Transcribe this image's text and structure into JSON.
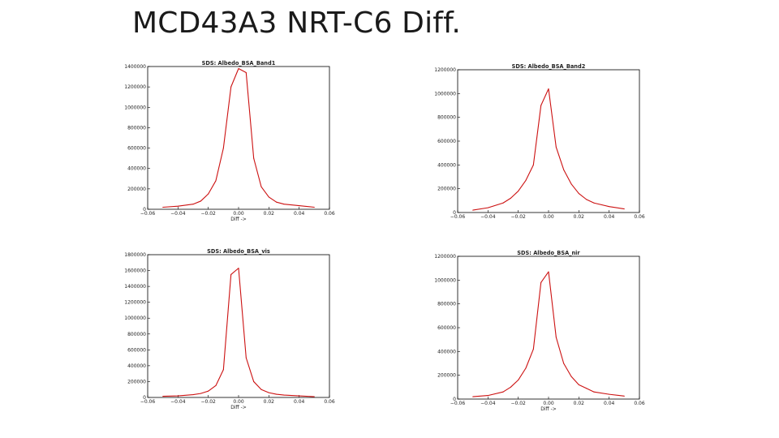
{
  "slide": {
    "title": "MCD43A3 NRT-C6 Diff."
  },
  "chart_data": [
    {
      "type": "line",
      "title": "SDS: Albedo_BSA_Band1",
      "xlabel": "Diff ->",
      "ylabel": "",
      "xlim": [
        -0.06,
        0.06
      ],
      "ylim": [
        0,
        1400000
      ],
      "x_ticks": [
        "−0.06",
        "−0.04",
        "−0.02",
        "0.00",
        "0.02",
        "0.04",
        "0.06"
      ],
      "y_ticks": [
        "0",
        "200000",
        "400000",
        "600000",
        "800000",
        "1000000",
        "1200000",
        "1400000"
      ],
      "series_color": "#cc1111",
      "series": [
        {
          "x": [
            -0.05,
            -0.04,
            -0.03,
            -0.025,
            -0.02,
            -0.015,
            -0.01,
            -0.005,
            0.0,
            0.005,
            0.01,
            0.015,
            0.02,
            0.025,
            0.03,
            0.04,
            0.05
          ],
          "y": [
            20000,
            30000,
            50000,
            80000,
            150000,
            280000,
            600000,
            1200000,
            1380000,
            1340000,
            500000,
            220000,
            120000,
            70000,
            50000,
            35000,
            20000
          ]
        }
      ]
    },
    {
      "type": "line",
      "title": "SDS: Albedo_BSA_Band2",
      "xlabel": "",
      "ylabel": "",
      "xlim": [
        -0.06,
        0.06
      ],
      "ylim": [
        0,
        1200000
      ],
      "x_ticks": [
        "−0.06",
        "−0.04",
        "−0.02",
        "0.00",
        "0.02",
        "0.04",
        "0.06"
      ],
      "y_ticks": [
        "0",
        "200000",
        "400000",
        "600000",
        "800000",
        "1000000",
        "1200000"
      ],
      "series_color": "#cc1111",
      "series": [
        {
          "x": [
            -0.05,
            -0.04,
            -0.03,
            -0.025,
            -0.02,
            -0.015,
            -0.01,
            -0.005,
            0.0,
            0.005,
            0.01,
            0.015,
            0.02,
            0.025,
            0.03,
            0.04,
            0.05
          ],
          "y": [
            20000,
            40000,
            80000,
            120000,
            180000,
            270000,
            400000,
            900000,
            1040000,
            550000,
            360000,
            240000,
            160000,
            110000,
            80000,
            50000,
            30000
          ]
        }
      ]
    },
    {
      "type": "line",
      "title": "SDS: Albedo_BSA_vis",
      "xlabel": "Diff ->",
      "ylabel": "",
      "xlim": [
        -0.06,
        0.06
      ],
      "ylim": [
        0,
        1800000
      ],
      "x_ticks": [
        "−0.06",
        "−0.04",
        "−0.02",
        "0.00",
        "0.02",
        "0.04",
        "0.06"
      ],
      "y_ticks": [
        "0",
        "200000",
        "400000",
        "600000",
        "800000",
        "1000000",
        "1200000",
        "1400000",
        "1600000",
        "1800000"
      ],
      "series_color": "#cc1111",
      "series": [
        {
          "x": [
            -0.05,
            -0.04,
            -0.03,
            -0.025,
            -0.02,
            -0.015,
            -0.01,
            -0.005,
            0.0,
            0.005,
            0.01,
            0.015,
            0.02,
            0.025,
            0.03,
            0.04,
            0.05
          ],
          "y": [
            15000,
            20000,
            35000,
            50000,
            80000,
            150000,
            350000,
            1550000,
            1630000,
            500000,
            200000,
            100000,
            60000,
            40000,
            30000,
            20000,
            10000
          ]
        }
      ]
    },
    {
      "type": "line",
      "title": "SDS: Albedo_BSA_nir",
      "xlabel": "Diff ->",
      "ylabel": "",
      "xlim": [
        -0.06,
        0.06
      ],
      "ylim": [
        0,
        1200000
      ],
      "x_ticks": [
        "−0.06",
        "−0.04",
        "−0.02",
        "0.00",
        "0.02",
        "0.04",
        "0.06"
      ],
      "y_ticks": [
        "0",
        "200000",
        "400000",
        "600000",
        "800000",
        "1000000",
        "1200000"
      ],
      "series_color": "#cc1111",
      "series": [
        {
          "x": [
            -0.05,
            -0.04,
            -0.03,
            -0.025,
            -0.02,
            -0.015,
            -0.01,
            -0.005,
            0.0,
            0.005,
            0.01,
            0.015,
            0.02,
            0.025,
            0.03,
            0.04,
            0.05
          ],
          "y": [
            20000,
            30000,
            60000,
            100000,
            160000,
            260000,
            420000,
            980000,
            1070000,
            520000,
            300000,
            190000,
            120000,
            90000,
            60000,
            40000,
            25000
          ]
        }
      ]
    }
  ]
}
